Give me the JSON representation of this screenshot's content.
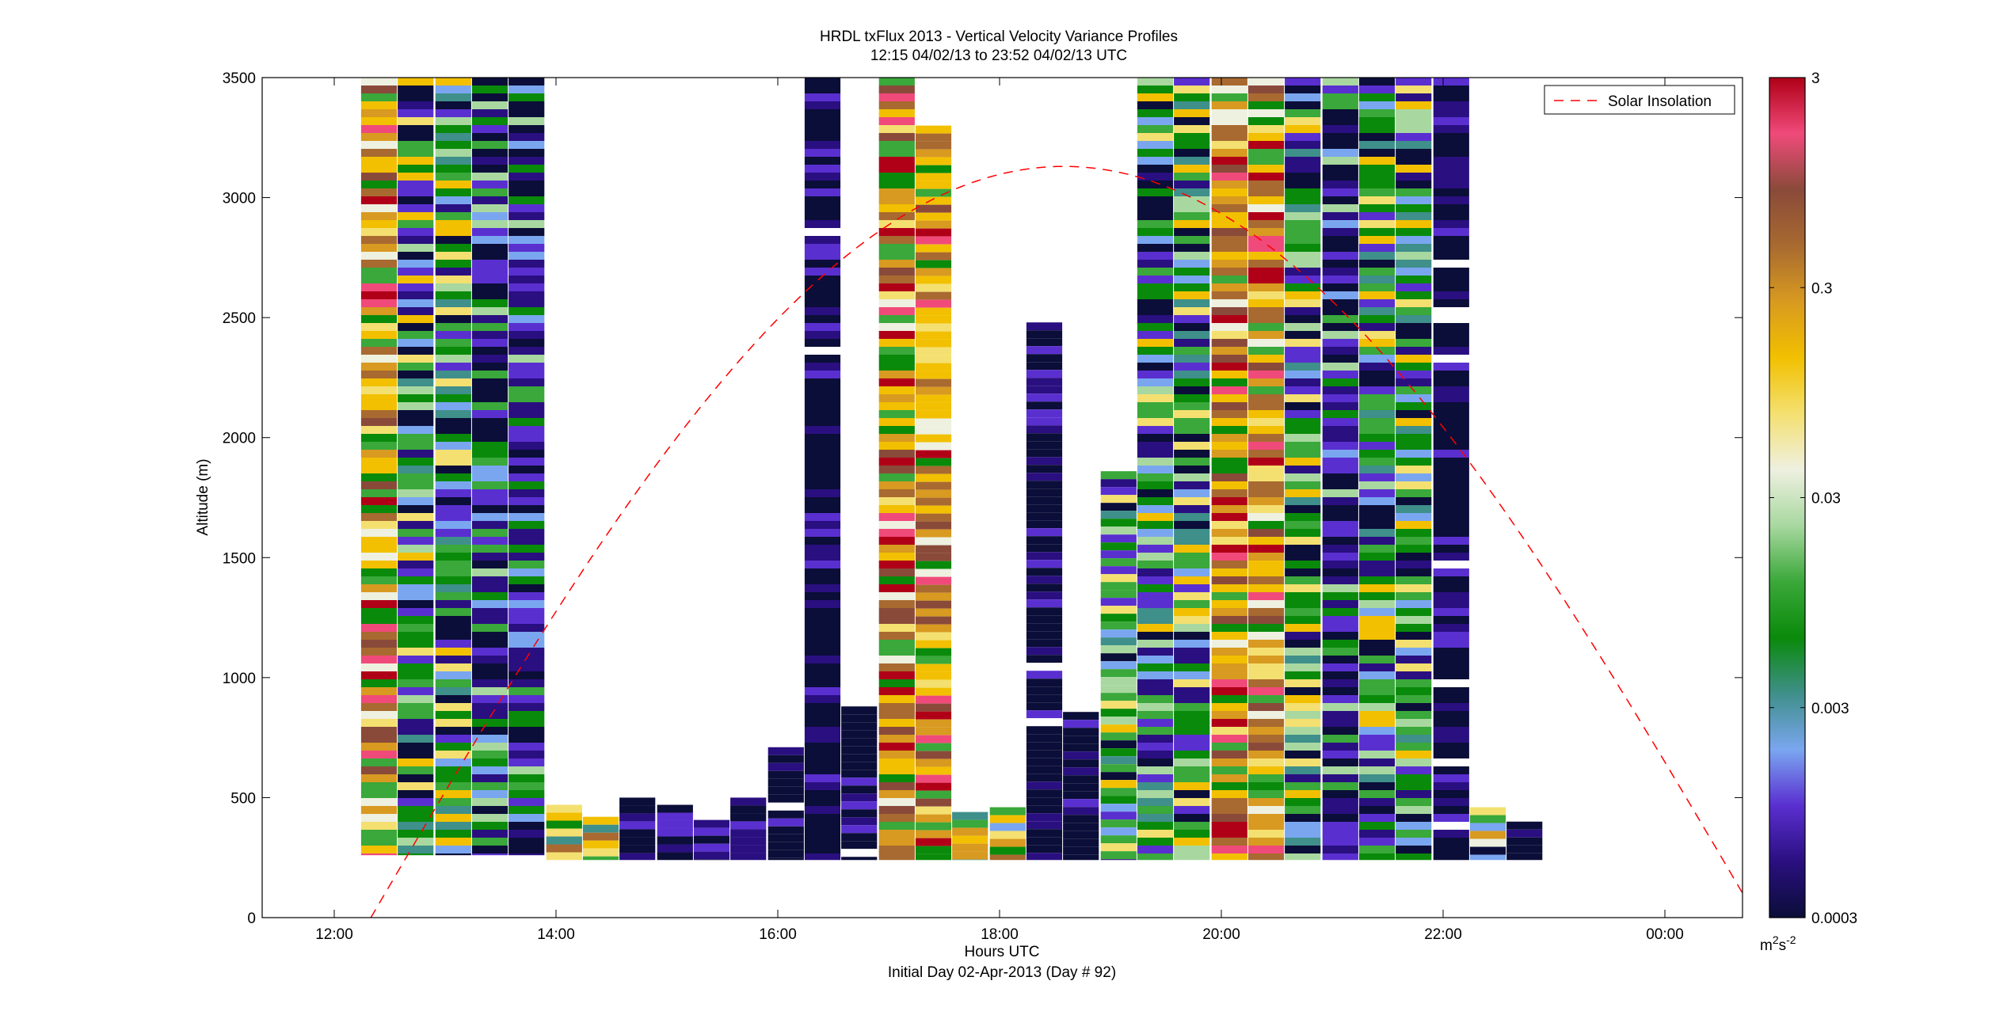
{
  "chart_data": {
    "type": "heatmap",
    "title": "HRDL txFlux 2013 - Vertical Velocity Variance Profiles",
    "subtitle": "12:15 04/02/13 to 23:52 04/02/13  UTC",
    "xlabel": "Hours UTC",
    "xlabel2": "Initial Day 02-Apr-2013 (Day # 92)",
    "ylabel": "Altitude (m)",
    "x_ticks": [
      "12:00",
      "14:00",
      "16:00",
      "18:00",
      "20:00",
      "22:00",
      "00:00"
    ],
    "x_tick_hours": [
      12,
      14,
      16,
      18,
      20,
      22,
      24
    ],
    "xlim_hours": [
      11.35,
      24.7
    ],
    "y_ticks": [
      0,
      500,
      1000,
      1500,
      2000,
      2500,
      3000,
      3500
    ],
    "ylim": [
      0,
      3500
    ],
    "grid": false,
    "legend": {
      "position": "top-right",
      "entries": [
        "Solar Insolation"
      ]
    },
    "solar_insolation": {
      "color": "#ff0000",
      "style": "dashed",
      "start_hour": 12.33,
      "peak_hour": 18.58,
      "peak_altitude": 3130,
      "end_hour": 24.7
    },
    "colorbar": {
      "label_base": "m",
      "label_sup1": "2",
      "label_mid": "s",
      "label_sup2": "-2",
      "tick_labels": [
        "3",
        "0.3",
        "0.03",
        "0.003",
        "0.0003"
      ],
      "tick_values": [
        3,
        0.3,
        0.03,
        0.003,
        0.0003
      ],
      "scale": "log",
      "range": [
        0.0003,
        3
      ],
      "colors": [
        "#0b0e38",
        "#2a0f80",
        "#5a2fd0",
        "#7aa6f0",
        "#3f8f8a",
        "#0a8a0a",
        "#3aa83a",
        "#a8d8a0",
        "#eef0e0",
        "#f4e070",
        "#f2c000",
        "#d89a20",
        "#a86a30",
        "#8a4a3a",
        "#f04a7a",
        "#b00018"
      ]
    },
    "columns": [
      {
        "t": 12.4,
        "top": 3500,
        "bottom": 260,
        "profile": "warm"
      },
      {
        "t": 12.73,
        "top": 3500,
        "bottom": 260,
        "profile": "mixed"
      },
      {
        "t": 13.07,
        "top": 3500,
        "bottom": 260,
        "profile": "mixed"
      },
      {
        "t": 13.4,
        "top": 3500,
        "bottom": 260,
        "profile": "cool"
      },
      {
        "t": 13.73,
        "top": 3500,
        "bottom": 260,
        "profile": "cool"
      },
      {
        "t": 14.07,
        "top": 470,
        "bottom": 240,
        "profile": "low"
      },
      {
        "t": 14.4,
        "top": 420,
        "bottom": 240,
        "profile": "low"
      },
      {
        "t": 14.73,
        "top": 500,
        "bottom": 240,
        "profile": "dark"
      },
      {
        "t": 15.07,
        "top": 470,
        "bottom": 240,
        "profile": "dark"
      },
      {
        "t": 15.4,
        "top": 440,
        "bottom": 240,
        "profile": "dark"
      },
      {
        "t": 15.73,
        "top": 500,
        "bottom": 240,
        "profile": "dark"
      },
      {
        "t": 16.07,
        "top": 710,
        "bottom": 240,
        "profile": "dark"
      },
      {
        "t": 16.4,
        "top": 3500,
        "bottom": 240,
        "profile": "dark"
      },
      {
        "t": 16.73,
        "top": 880,
        "bottom": 240,
        "profile": "dark"
      },
      {
        "t": 17.07,
        "top": 3500,
        "bottom": 240,
        "profile": "warm"
      },
      {
        "t": 17.4,
        "top": 3300,
        "bottom": 240,
        "profile": "warm"
      },
      {
        "t": 17.73,
        "top": 440,
        "bottom": 240,
        "profile": "low"
      },
      {
        "t": 18.07,
        "top": 460,
        "bottom": 240,
        "profile": "low"
      },
      {
        "t": 18.4,
        "top": 2480,
        "bottom": 240,
        "profile": "dark"
      },
      {
        "t": 18.73,
        "top": 890,
        "bottom": 240,
        "profile": "dark"
      },
      {
        "t": 19.07,
        "top": 1860,
        "bottom": 240,
        "profile": "mixed"
      },
      {
        "t": 19.4,
        "top": 3500,
        "bottom": 240,
        "profile": "mixed"
      },
      {
        "t": 19.73,
        "top": 3500,
        "bottom": 240,
        "profile": "mixed"
      },
      {
        "t": 20.07,
        "top": 3500,
        "bottom": 240,
        "profile": "warm"
      },
      {
        "t": 20.4,
        "top": 3500,
        "bottom": 240,
        "profile": "warm"
      },
      {
        "t": 20.73,
        "top": 3500,
        "bottom": 240,
        "profile": "mixed"
      },
      {
        "t": 21.07,
        "top": 3500,
        "bottom": 240,
        "profile": "cool"
      },
      {
        "t": 21.4,
        "top": 3500,
        "bottom": 240,
        "profile": "mixed"
      },
      {
        "t": 21.73,
        "top": 3500,
        "bottom": 240,
        "profile": "mixed"
      },
      {
        "t": 22.07,
        "top": 3500,
        "bottom": 240,
        "profile": "dark"
      },
      {
        "t": 22.4,
        "top": 460,
        "bottom": 240,
        "profile": "low"
      },
      {
        "t": 22.73,
        "top": 400,
        "bottom": 240,
        "profile": "dark"
      }
    ]
  }
}
